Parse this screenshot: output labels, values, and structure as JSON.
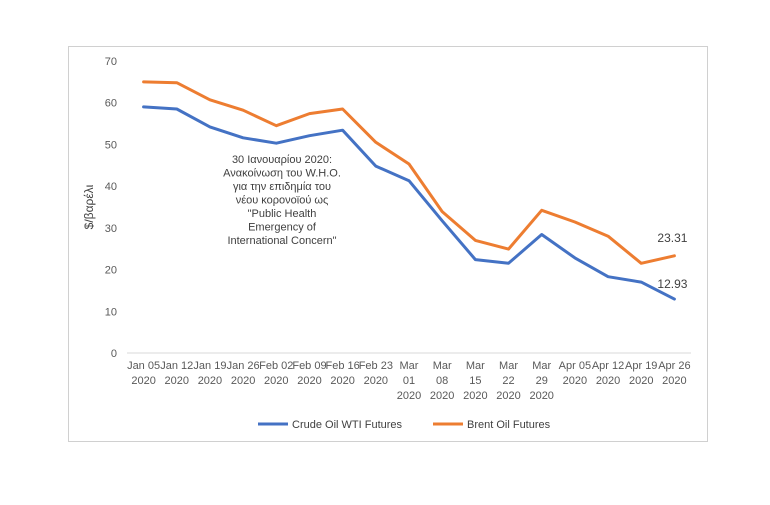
{
  "chart_data": {
    "type": "line",
    "title": "",
    "xlabel": "",
    "ylabel": "$/βαρέλι",
    "ylim": [
      0,
      70
    ],
    "yticks": [
      0,
      10,
      20,
      30,
      40,
      50,
      60,
      70
    ],
    "grid": false,
    "legend_position": "bottom",
    "categories": [
      [
        "Jan 05",
        "2020"
      ],
      [
        "Jan 12",
        "2020"
      ],
      [
        "Jan 19",
        "2020"
      ],
      [
        "Jan 26",
        "2020"
      ],
      [
        "Feb 02",
        "2020"
      ],
      [
        "Feb 09",
        "2020"
      ],
      [
        "Feb 16",
        "2020"
      ],
      [
        "Feb 23",
        "2020"
      ],
      [
        "Mar",
        "01",
        "2020"
      ],
      [
        "Mar",
        "08",
        "2020"
      ],
      [
        "Mar",
        "15",
        "2020"
      ],
      [
        "Mar",
        "22",
        "2020"
      ],
      [
        "Mar",
        "29",
        "2020"
      ],
      [
        "Apr 05",
        "2020"
      ],
      [
        "Apr 12",
        "2020"
      ],
      [
        "Apr 19",
        "2020"
      ],
      [
        "Apr 26",
        "2020"
      ]
    ],
    "series": [
      {
        "name": "Crude Oil WTI Futures",
        "color": "#4472c4",
        "values": [
          59.0,
          58.5,
          54.2,
          51.6,
          50.3,
          52.1,
          53.4,
          44.8,
          41.3,
          31.7,
          22.4,
          21.5,
          28.4,
          22.8,
          18.3,
          17.0,
          12.93
        ]
      },
      {
        "name": "Brent Oil Futures",
        "color": "#ed7d31",
        "values": [
          65.0,
          64.8,
          60.7,
          58.2,
          54.5,
          57.4,
          58.5,
          50.5,
          45.3,
          33.9,
          27.0,
          24.9,
          34.2,
          31.4,
          28.0,
          21.5,
          23.31
        ]
      }
    ],
    "data_labels": [
      "23.31",
      "12.93"
    ],
    "annotation": [
      "30 Ιανουαρίου 2020:",
      "Ανακοίνωση του W.H.O.",
      "για την επιδημία του",
      "νέου κορονοϊού ως",
      "\"Public Health",
      "Emergency of",
      "International Concern\""
    ]
  }
}
